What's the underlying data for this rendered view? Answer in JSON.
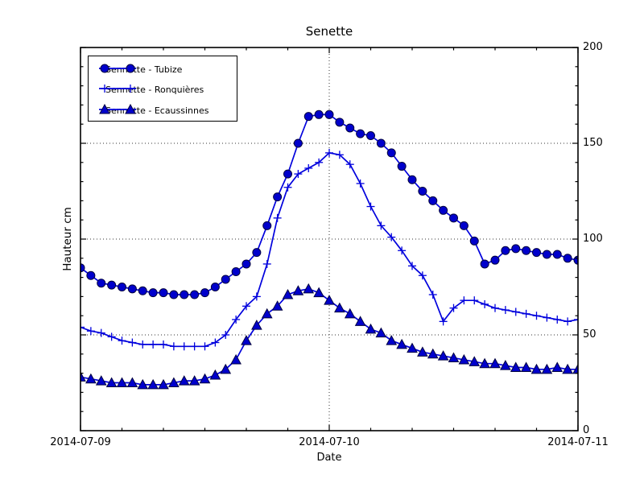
{
  "figure": {
    "background": "#ffffff"
  },
  "chart_data": {
    "type": "line",
    "title": "Senette",
    "xlabel": "Date",
    "ylabel": "Hauteur cm",
    "x_tick_labels": [
      "2014-07-09",
      "2014-07-10",
      "2014-07-11"
    ],
    "y_tick_labels": [
      "0",
      "50",
      "100",
      "150",
      "200"
    ],
    "y_ticks": [
      0,
      50,
      100,
      150,
      200
    ],
    "ylim": [
      0,
      200
    ],
    "x_start": "2014-07-09 00:00",
    "x_end": "2014-07-11 00:00",
    "x_step_hours": 1,
    "grid": {
      "horizontal_at": [
        50,
        100,
        150
      ],
      "vertical_at_hour": 24,
      "style": "dotted"
    },
    "legend_position": "upper-left",
    "colors": {
      "line": "#0000dd",
      "marker_fill": "#0000cc",
      "marker_edge": "#000040",
      "grid": "#333333",
      "axis": "#000000"
    },
    "series": [
      {
        "name": "Sennette - Tubize",
        "marker": "circle",
        "values": [
          85,
          81,
          77,
          76,
          75,
          74,
          73,
          72,
          72,
          71,
          71,
          71,
          72,
          75,
          79,
          83,
          87,
          93,
          107,
          122,
          134,
          150,
          164,
          165,
          165,
          161,
          158,
          155,
          154,
          150,
          145,
          138,
          131,
          125,
          120,
          115,
          111,
          107,
          99,
          87,
          89,
          94,
          95,
          94,
          93,
          92,
          92,
          90,
          89
        ]
      },
      {
        "name": "Sennette - Ronquières",
        "marker": "plus",
        "values": [
          54,
          52,
          51,
          49,
          47,
          46,
          45,
          45,
          45,
          44,
          44,
          44,
          44,
          46,
          50,
          58,
          65,
          70,
          87,
          111,
          127,
          134,
          137,
          140,
          145,
          144,
          139,
          129,
          117,
          107,
          101,
          94,
          86,
          81,
          71,
          57,
          64,
          68,
          68,
          66,
          64,
          63,
          62,
          61,
          60,
          59,
          58,
          57,
          58
        ]
      },
      {
        "name": "Sennette - Ecaussinnes",
        "marker": "triangle",
        "values": [
          28,
          27,
          26,
          25,
          25,
          25,
          24,
          24,
          24,
          25,
          26,
          26,
          27,
          29,
          32,
          37,
          47,
          55,
          61,
          65,
          71,
          73,
          74,
          72,
          68,
          64,
          61,
          57,
          53,
          51,
          47,
          45,
          43,
          41,
          40,
          39,
          38,
          37,
          36,
          35,
          35,
          34,
          33,
          33,
          32,
          32,
          33,
          32,
          32
        ]
      }
    ]
  }
}
